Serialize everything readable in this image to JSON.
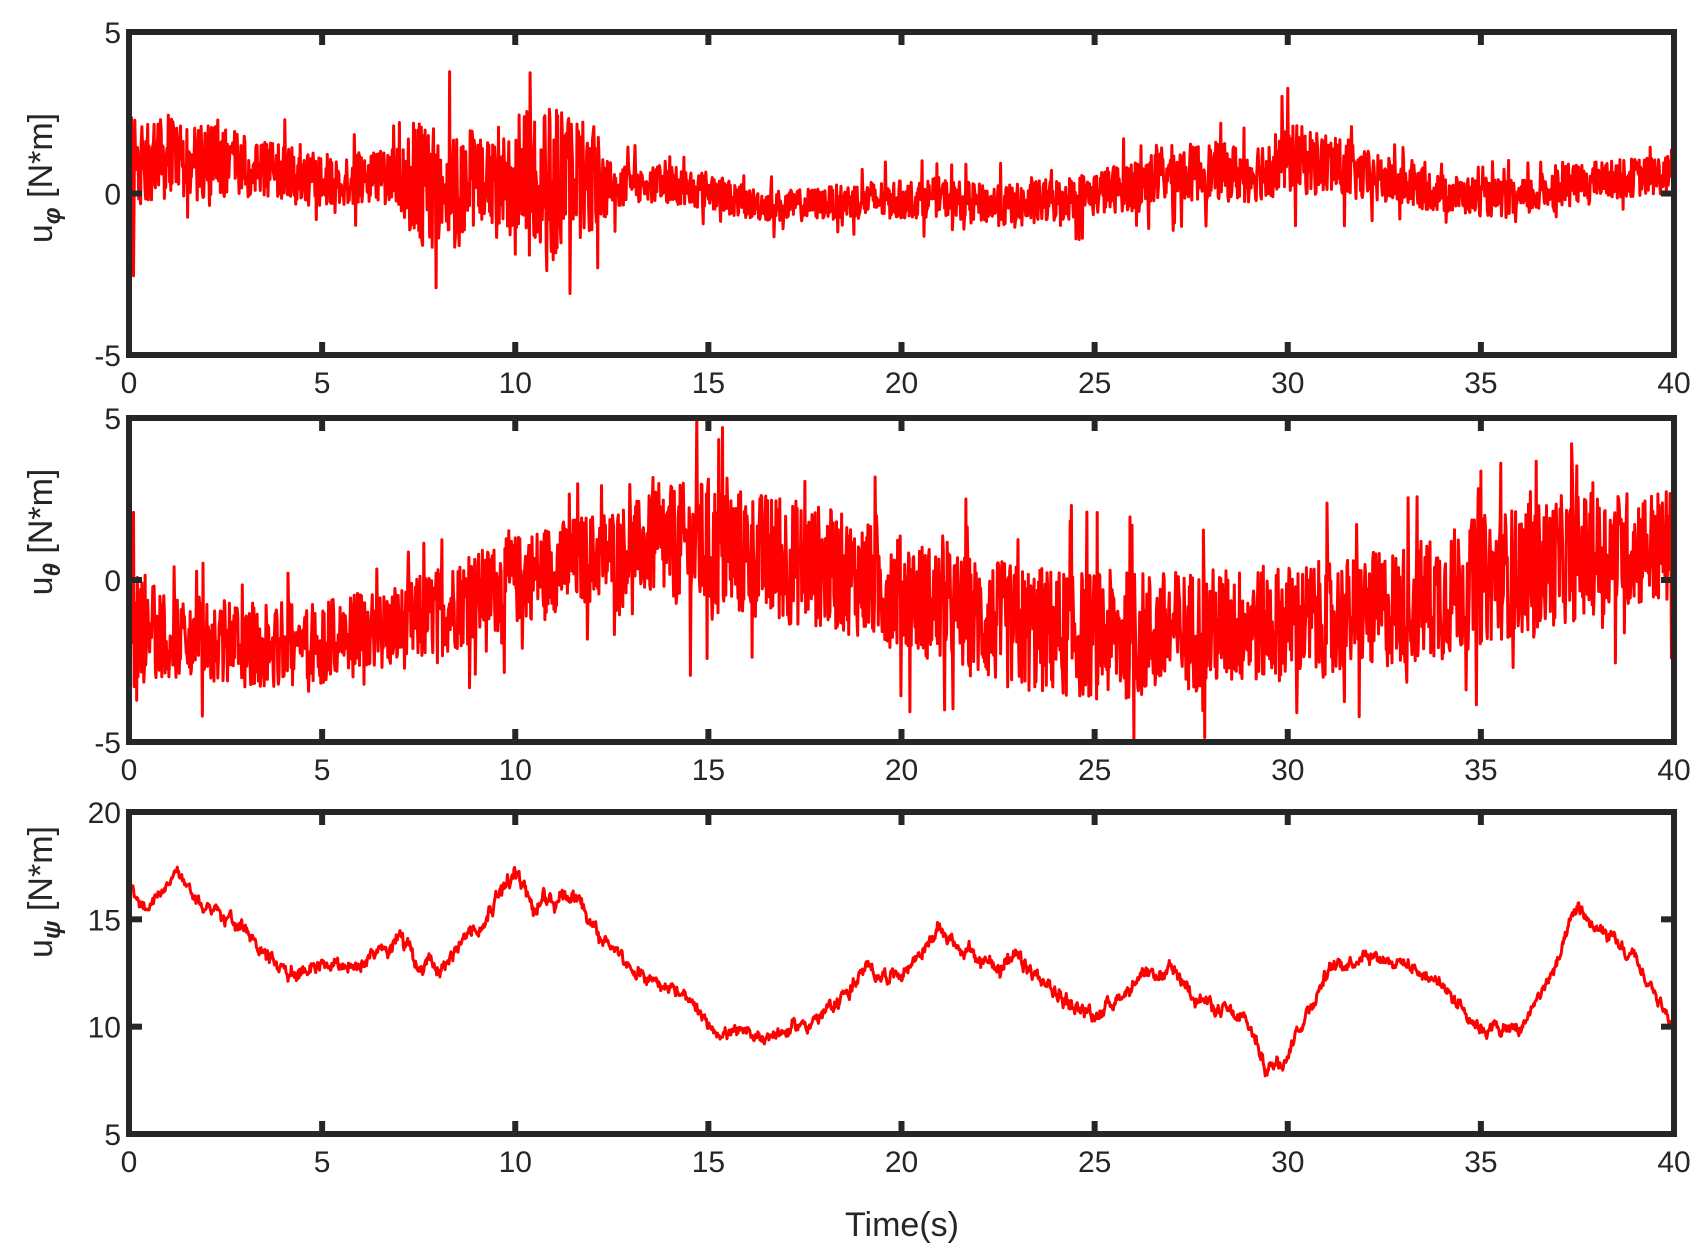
{
  "chart_data": [
    {
      "type": "line",
      "ylabel": "u",
      "ylabel_sub": "φ",
      "ylabel_unit": " [N*m]",
      "xlim": [
        0,
        40
      ],
      "ylim": [
        -5,
        5
      ],
      "xticks": [
        "0",
        "5",
        "10",
        "15",
        "20",
        "25",
        "30",
        "35",
        "40"
      ],
      "yticks": [
        "-5",
        "0",
        "5"
      ],
      "series": [
        {
          "color": "#ff0000",
          "x": [
            0,
            0.5,
            1,
            1.5,
            2,
            2.5,
            3,
            4,
            5,
            6,
            7,
            7.5,
            8,
            8.5,
            9,
            9.5,
            10,
            10.5,
            11,
            11.5,
            12,
            12.5,
            13,
            14,
            15,
            16,
            17,
            18,
            19,
            20,
            21,
            22,
            23,
            24,
            25,
            26,
            27,
            28,
            29,
            30,
            31,
            32,
            33,
            34,
            35,
            36,
            37,
            38,
            39,
            40
          ],
          "y": [
            0.5,
            1.0,
            1.2,
            0.8,
            1.0,
            0.9,
            0.8,
            0.6,
            0.4,
            0.5,
            0.5,
            0.2,
            0.2,
            0.3,
            0.5,
            0.3,
            0.5,
            0.6,
            0.4,
            0.5,
            0.6,
            0.2,
            0.3,
            0.3,
            0.1,
            -0.3,
            -0.4,
            -0.3,
            -0.2,
            -0.2,
            -0.1,
            -0.3,
            -0.4,
            -0.2,
            0.0,
            0.3,
            0.6,
            0.7,
            0.6,
            1.1,
            0.9,
            0.5,
            0.3,
            0.0,
            -0.1,
            -0.2,
            0.2,
            0.4,
            0.5,
            0.6
          ],
          "amp": [
            2.0,
            1.2,
            1.2,
            1.2,
            1.2,
            1.2,
            1.0,
            0.9,
            0.8,
            0.8,
            0.9,
            2.2,
            1.8,
            2.0,
            1.4,
            1.2,
            2.0,
            2.0,
            2.5,
            2.0,
            1.8,
            0.8,
            0.6,
            0.6,
            0.6,
            0.5,
            0.5,
            0.5,
            0.6,
            0.6,
            0.6,
            0.6,
            0.7,
            0.7,
            0.7,
            0.8,
            0.9,
            0.9,
            0.9,
            1.1,
            1.0,
            0.8,
            0.7,
            0.6,
            0.6,
            0.6,
            0.6,
            0.6,
            0.6,
            0.6
          ]
        }
      ]
    },
    {
      "type": "line",
      "ylabel": "u",
      "ylabel_sub": "θ",
      "ylabel_unit": " [N*m]",
      "xlim": [
        0,
        40
      ],
      "ylim": [
        -5,
        5
      ],
      "xticks": [
        "0",
        "5",
        "10",
        "15",
        "20",
        "25",
        "30",
        "35",
        "40"
      ],
      "yticks": [
        "-5",
        "0",
        "5"
      ],
      "series": [
        {
          "color": "#ff0000",
          "x": [
            0,
            1,
            2,
            3,
            4,
            5,
            6,
            7,
            8,
            9,
            10,
            11,
            12,
            13,
            14,
            15,
            16,
            17,
            18,
            19,
            20,
            21,
            22,
            23,
            24,
            25,
            26,
            27,
            28,
            29,
            30,
            31,
            32,
            33,
            34,
            35,
            36,
            37,
            38,
            39,
            40
          ],
          "y": [
            -1.5,
            -1.8,
            -1.8,
            -2.0,
            -2.0,
            -1.9,
            -1.7,
            -1.5,
            -1.0,
            -0.5,
            0.0,
            0.4,
            0.7,
            1.0,
            1.1,
            1.0,
            0.8,
            0.6,
            0.4,
            0.0,
            -0.4,
            -0.8,
            -1.2,
            -1.5,
            -1.6,
            -1.7,
            -1.7,
            -1.6,
            -1.5,
            -1.4,
            -1.3,
            -1.2,
            -1.0,
            -0.8,
            -0.5,
            0.0,
            0.3,
            0.6,
            0.8,
            1.0,
            1.0
          ],
          "amp": [
            2.2,
            1.2,
            1.3,
            1.3,
            1.3,
            1.3,
            1.3,
            1.3,
            1.4,
            1.4,
            1.4,
            1.4,
            1.4,
            1.4,
            1.8,
            2.2,
            2.0,
            2.0,
            1.9,
            1.8,
            1.8,
            1.8,
            1.9,
            2.0,
            2.0,
            2.0,
            2.0,
            1.9,
            1.9,
            1.8,
            1.8,
            1.8,
            1.8,
            1.9,
            2.0,
            2.0,
            2.0,
            2.0,
            1.9,
            1.8,
            1.8
          ]
        }
      ]
    },
    {
      "type": "line",
      "ylabel": "u",
      "ylabel_sub": "ψ",
      "ylabel_unit": " [N*m]",
      "xlabel": "Time(s)",
      "xlim": [
        0,
        40
      ],
      "ylim": [
        5,
        20
      ],
      "xticks": [
        "0",
        "5",
        "10",
        "15",
        "20",
        "25",
        "30",
        "35",
        "40"
      ],
      "yticks": [
        "5",
        "10",
        "15",
        "20"
      ],
      "series": [
        {
          "color": "#ff0000",
          "x": [
            0,
            0.5,
            1,
            1.2,
            2,
            3,
            3.5,
            4,
            5,
            6,
            6.5,
            7,
            7.5,
            8,
            9,
            10,
            10.5,
            11,
            11.5,
            12,
            13,
            14,
            15,
            16,
            17,
            18,
            19,
            20,
            21,
            22,
            23,
            24,
            25,
            26,
            27,
            28,
            29,
            29.5,
            30,
            31,
            32,
            33,
            34,
            35,
            36,
            37,
            37.5,
            38,
            39,
            40
          ],
          "y": [
            16.0,
            15.5,
            16.5,
            17.0,
            15.5,
            14.5,
            13.5,
            12.5,
            12.8,
            13.0,
            13.5,
            14.0,
            13.0,
            13.0,
            14.5,
            17.5,
            15.5,
            16.0,
            16.5,
            14.5,
            12.5,
            12.0,
            10.0,
            9.5,
            9.8,
            10.5,
            12.5,
            12.5,
            14.5,
            13.0,
            13.0,
            11.5,
            10.5,
            12.0,
            12.5,
            11.0,
            10.0,
            8.0,
            9.0,
            12.5,
            13.5,
            13.0,
            12.0,
            10.0,
            9.8,
            13.0,
            15.5,
            14.5,
            13.0,
            10.0
          ],
          "amp": [
            0.6,
            0.4,
            0.4,
            0.4,
            0.4,
            0.4,
            0.4,
            0.5,
            0.4,
            0.4,
            0.5,
            0.5,
            0.5,
            0.5,
            0.5,
            0.6,
            0.5,
            0.5,
            0.5,
            0.5,
            0.4,
            0.4,
            0.4,
            0.4,
            0.4,
            0.4,
            0.5,
            0.4,
            0.4,
            0.5,
            0.5,
            0.5,
            0.4,
            0.4,
            0.4,
            0.4,
            0.5,
            0.5,
            0.5,
            0.4,
            0.4,
            0.4,
            0.4,
            0.4,
            0.4,
            0.4,
            0.4,
            0.4,
            0.4,
            0.4
          ]
        }
      ]
    }
  ]
}
